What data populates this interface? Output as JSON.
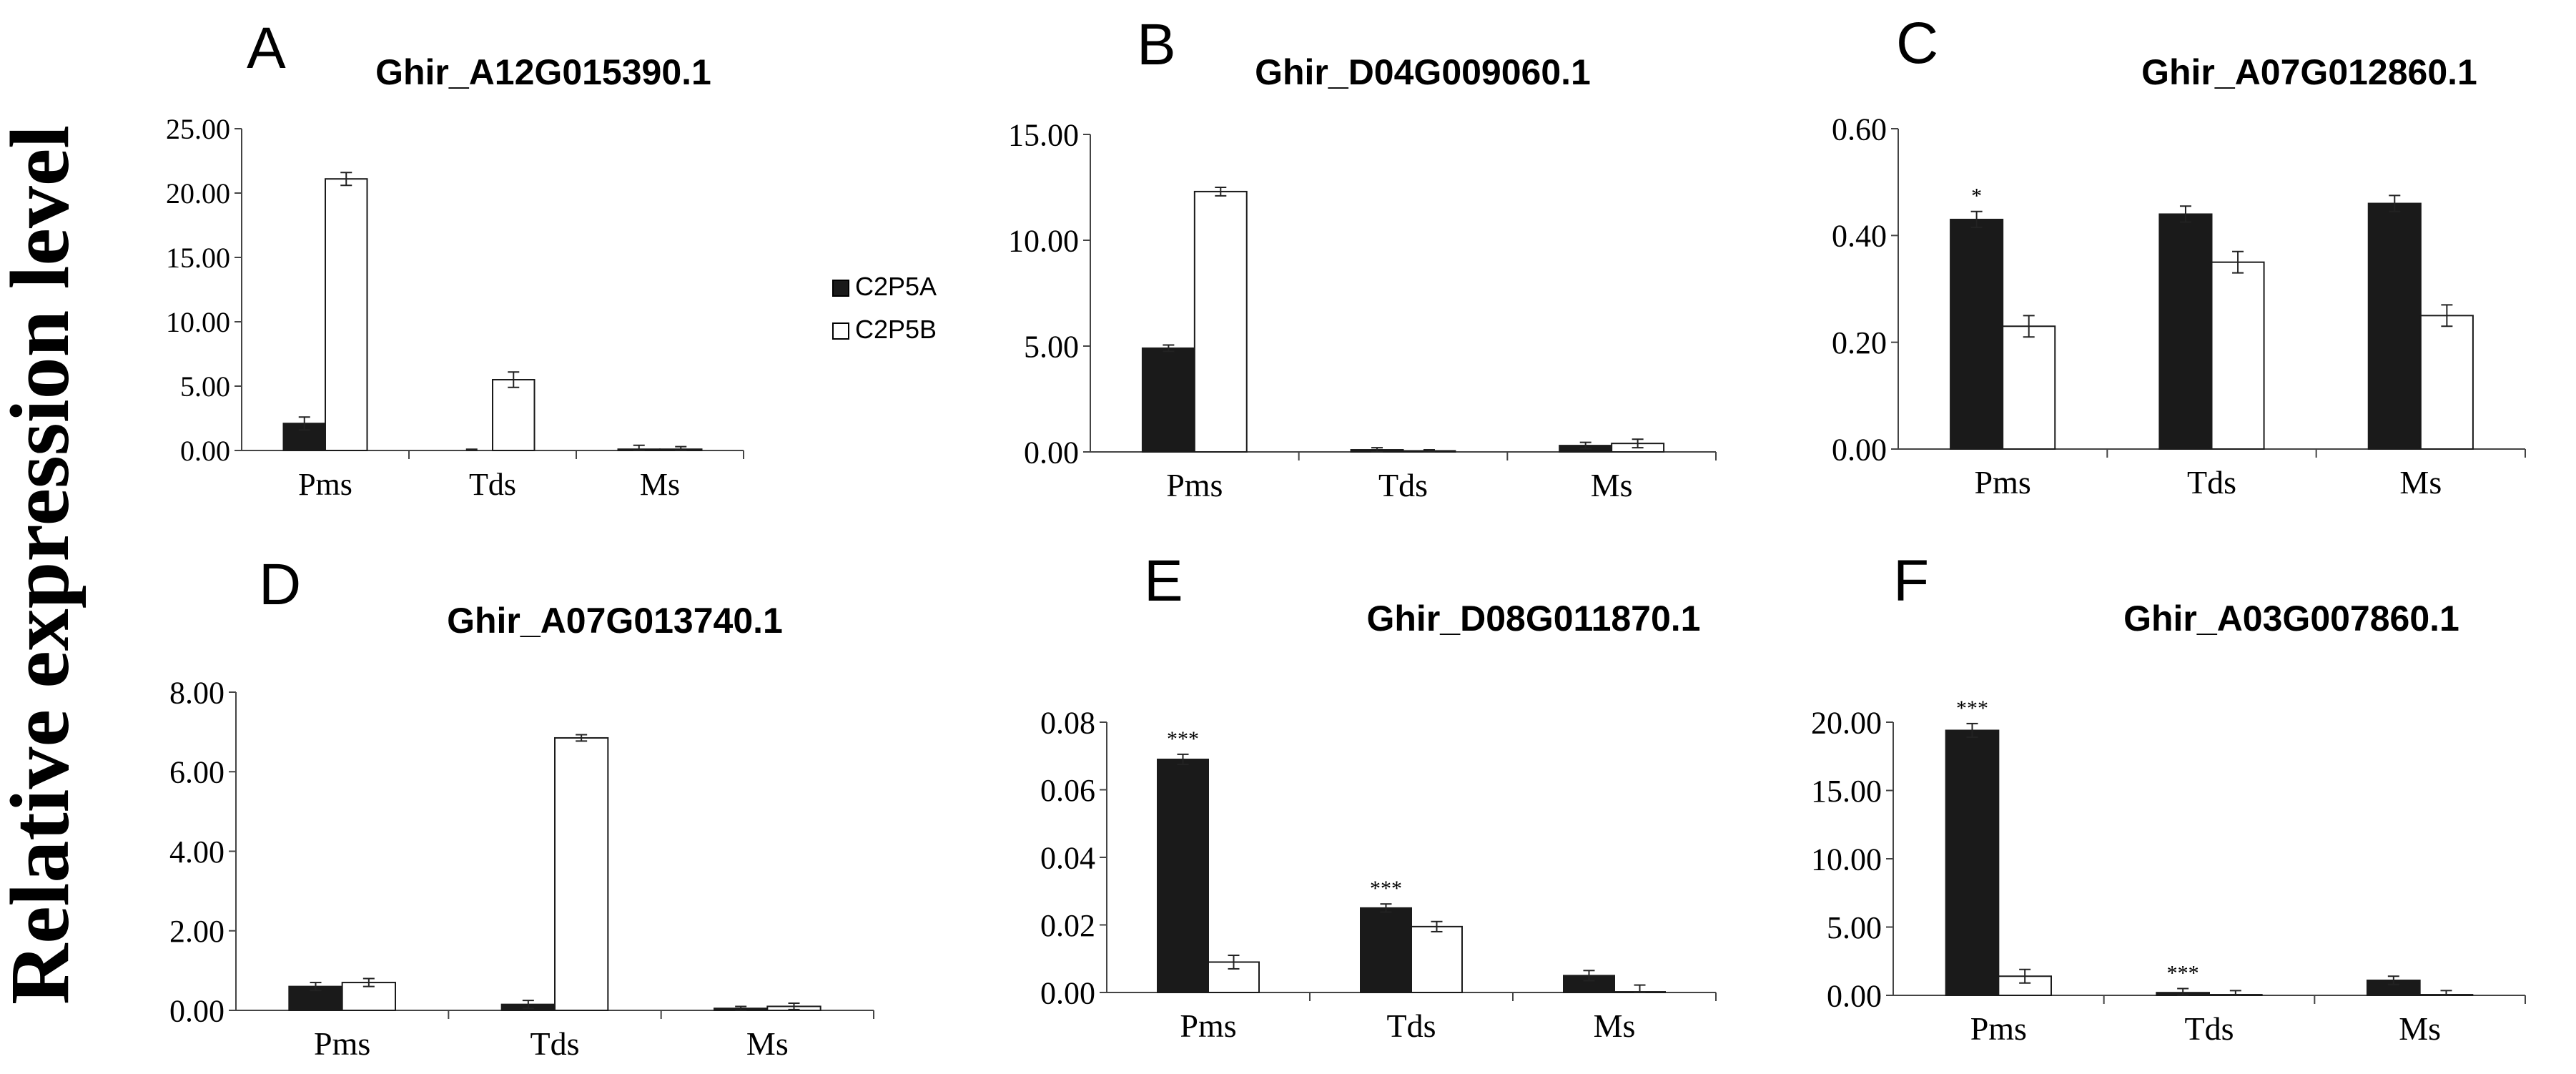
{
  "figure": {
    "y_axis_label": "Relative expression level",
    "legend": [
      {
        "name": "C2P5A",
        "fill": "#1a1a1a"
      },
      {
        "name": "C2P5B",
        "fill": "#ffffff"
      }
    ]
  },
  "chart_data": [
    {
      "panel": "A",
      "type": "bar",
      "title": "Ghir_A12G015390.1",
      "categories": [
        "Pms",
        "Tds",
        "Ms"
      ],
      "ylim": [
        0,
        25
      ],
      "yticks": [
        "0.00",
        "5.00",
        "10.00",
        "15.00",
        "20.00",
        "25.00"
      ],
      "series": [
        {
          "name": "C2P5A",
          "values": [
            2.1,
            0.0,
            0.1
          ],
          "errors": [
            0.5,
            0.1,
            0.3
          ]
        },
        {
          "name": "C2P5B",
          "values": [
            21.1,
            5.5,
            0.1
          ],
          "errors": [
            0.5,
            0.6,
            0.2
          ]
        }
      ],
      "annotations": []
    },
    {
      "panel": "B",
      "type": "bar",
      "title": "Ghir_D04G009060.1",
      "categories": [
        "Pms",
        "Tds",
        "Ms"
      ],
      "ylim": [
        0,
        15
      ],
      "yticks": [
        "0.00",
        "5.00",
        "10.00",
        "15.00"
      ],
      "series": [
        {
          "name": "C2P5A",
          "values": [
            4.9,
            0.1,
            0.3
          ],
          "errors": [
            0.15,
            0.1,
            0.15
          ]
        },
        {
          "name": "C2P5B",
          "values": [
            12.3,
            0.05,
            0.4
          ],
          "errors": [
            0.2,
            0.05,
            0.2
          ]
        }
      ],
      "annotations": []
    },
    {
      "panel": "C",
      "type": "bar",
      "title": "Ghir_A07G012860.1",
      "categories": [
        "Pms",
        "Tds",
        "Ms"
      ],
      "ylim": [
        0,
        0.6
      ],
      "yticks": [
        "0.00",
        "0.20",
        "0.40",
        "0.60"
      ],
      "series": [
        {
          "name": "C2P5A",
          "values": [
            0.43,
            0.44,
            0.46
          ],
          "errors": [
            0.015,
            0.015,
            0.015
          ]
        },
        {
          "name": "C2P5B",
          "values": [
            0.23,
            0.35,
            0.25
          ],
          "errors": [
            0.02,
            0.02,
            0.02
          ]
        }
      ],
      "annotations": [
        {
          "category": 0,
          "series": 0,
          "text": "*"
        }
      ]
    },
    {
      "panel": "D",
      "type": "bar",
      "title": "Ghir_A07G013740.1",
      "categories": [
        "Pms",
        "Tds",
        "Ms"
      ],
      "ylim": [
        0,
        8
      ],
      "yticks": [
        "0.00",
        "2.00",
        "4.00",
        "6.00",
        "8.00"
      ],
      "series": [
        {
          "name": "C2P5A",
          "values": [
            0.6,
            0.15,
            0.05
          ],
          "errors": [
            0.1,
            0.1,
            0.05
          ]
        },
        {
          "name": "C2P5B",
          "values": [
            0.7,
            6.85,
            0.1
          ],
          "errors": [
            0.1,
            0.08,
            0.08
          ]
        }
      ],
      "annotations": []
    },
    {
      "panel": "E",
      "type": "bar",
      "title": "Ghir_D08G011870.1",
      "categories": [
        "Pms",
        "Tds",
        "Ms"
      ],
      "ylim": [
        0,
        0.08
      ],
      "yticks": [
        "0.00",
        "0.02",
        "0.04",
        "0.06",
        "0.08"
      ],
      "series": [
        {
          "name": "C2P5A",
          "values": [
            0.069,
            0.025,
            0.005
          ],
          "errors": [
            0.0015,
            0.0012,
            0.0015
          ]
        },
        {
          "name": "C2P5B",
          "values": [
            0.009,
            0.0195,
            0.0002
          ],
          "errors": [
            0.002,
            0.0015,
            0.002
          ]
        }
      ],
      "annotations": [
        {
          "category": 0,
          "series": 0,
          "text": "***"
        },
        {
          "category": 1,
          "series": 0,
          "text": "***"
        }
      ]
    },
    {
      "panel": "F",
      "type": "bar",
      "title": "Ghir_A03G007860.1",
      "categories": [
        "Pms",
        "Tds",
        "Ms"
      ],
      "ylim": [
        0,
        20
      ],
      "yticks": [
        "0.00",
        "5.00",
        "10.00",
        "15.00",
        "20.00"
      ],
      "series": [
        {
          "name": "C2P5A",
          "values": [
            19.4,
            0.2,
            1.1
          ],
          "errors": [
            0.5,
            0.3,
            0.3
          ]
        },
        {
          "name": "C2P5B",
          "values": [
            1.4,
            0.05,
            0.05
          ],
          "errors": [
            0.5,
            0.3,
            0.3
          ]
        }
      ],
      "annotations": [
        {
          "category": 0,
          "series": 0,
          "text": "***"
        },
        {
          "category": 1,
          "series": 0,
          "text": "***"
        }
      ]
    }
  ]
}
